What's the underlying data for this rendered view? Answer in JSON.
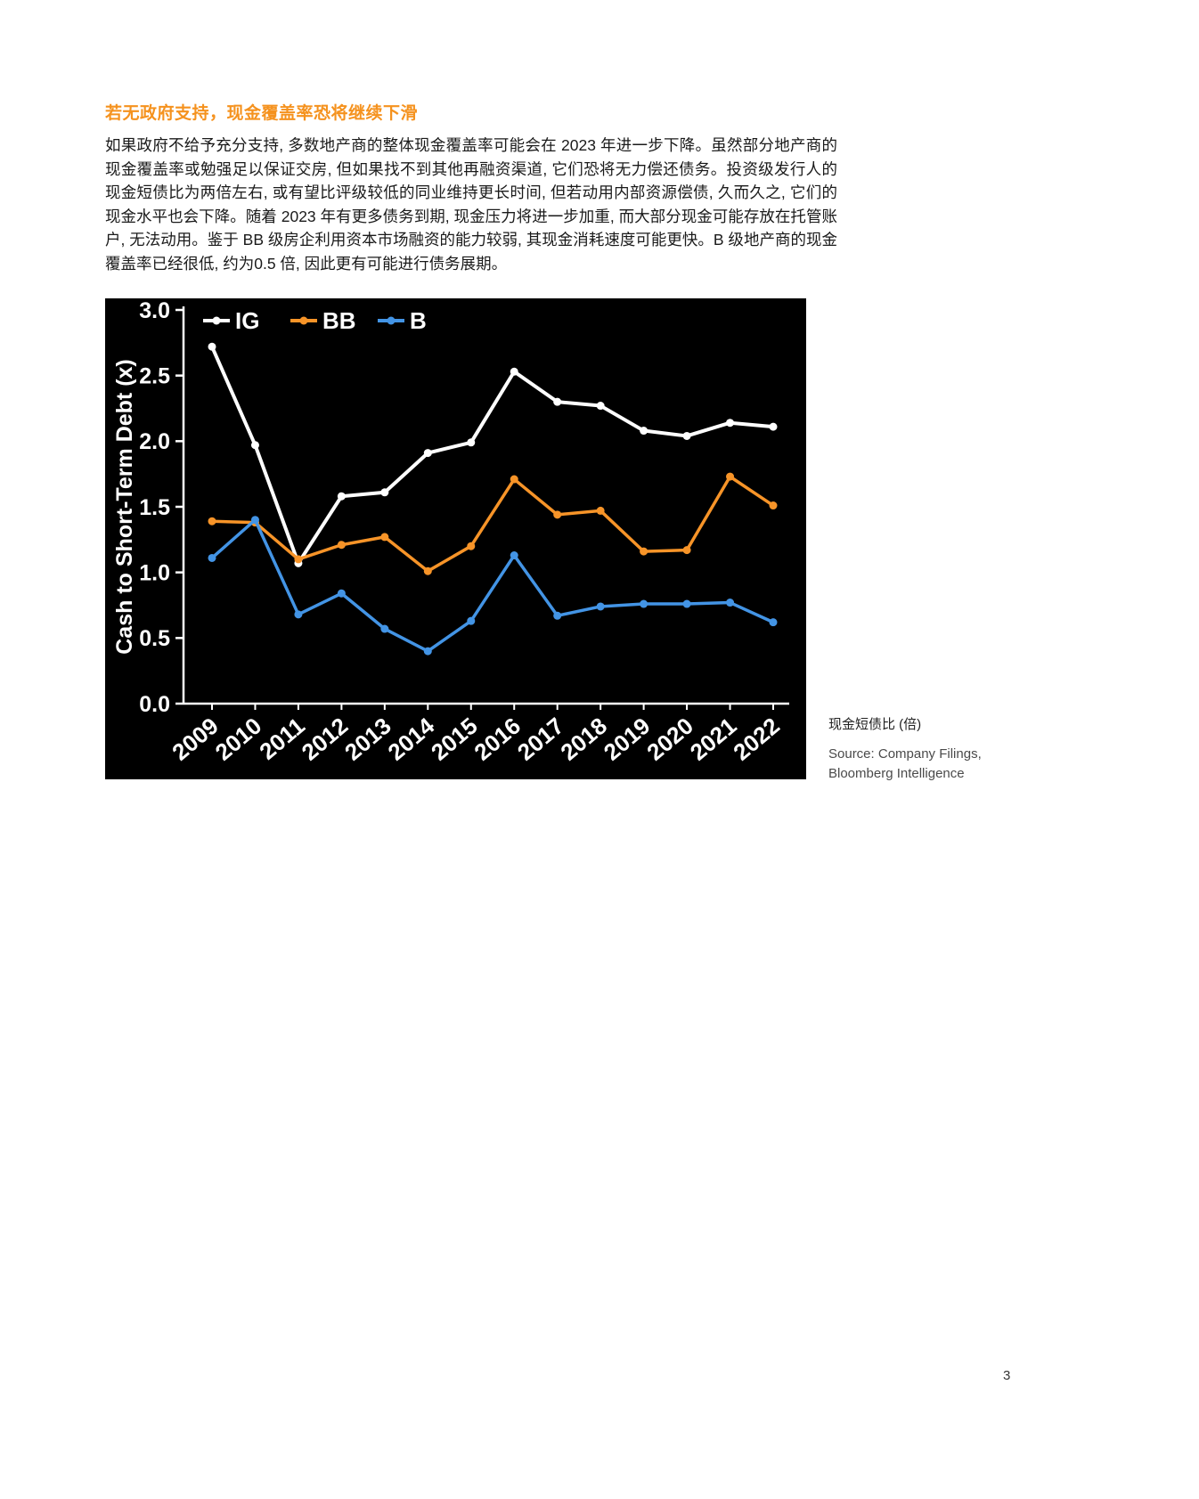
{
  "article": {
    "heading": "若无政府支持，现金覆盖率恐将继续下滑",
    "body": "如果政府不给予充分支持, 多数地产商的整体现金覆盖率可能会在 2023 年进一步下降。虽然部分地产商的现金覆盖率或勉强足以保证交房, 但如果找不到其他再融资渠道, 它们恐将无力偿还债务。投资级发行人的现金短债比为两倍左右, 或有望比评级较低的同业维持更长时间, 但若动用内部资源偿债, 久而久之, 它们的现金水平也会下降。随着 2023 年有更多债务到期, 现金压力将进一步加重, 而大部分现金可能存放在托管账户, 无法动用。鉴于 BB 级房企利用资本市场融资的能力较弱, 其现金消耗速度可能更快。B 级地产商的现金覆盖率已经很低, 约为0.5 倍, 因此更有可能进行债务展期。"
  },
  "chart_notes": {
    "caption": "现金短债比 (倍)",
    "source_line1": "Source: Company Filings,",
    "source_line2": "Bloomberg Intelligence"
  },
  "page": {
    "number": "3"
  },
  "chart_data": {
    "type": "line",
    "title": "",
    "xlabel": "",
    "ylabel": "Cash to Short-Term Debt (x)",
    "ylim": [
      0,
      3
    ],
    "yticks": [
      0.0,
      0.5,
      1.0,
      1.5,
      2.0,
      2.5,
      3.0
    ],
    "grid": false,
    "background": "#000000",
    "legend_position": "top-left",
    "categories": [
      "2009",
      "2010",
      "2011",
      "2012",
      "2013",
      "2014",
      "2015",
      "2016",
      "2017",
      "2018",
      "2019",
      "2020",
      "2021",
      "2022"
    ],
    "series": [
      {
        "name": "IG",
        "color": "#FFFFFF",
        "values": [
          2.72,
          1.97,
          1.07,
          1.58,
          1.61,
          1.91,
          1.99,
          2.53,
          2.3,
          2.27,
          2.08,
          2.04,
          2.14,
          2.11
        ]
      },
      {
        "name": "BB",
        "color": "#F79428",
        "values": [
          1.39,
          1.38,
          1.1,
          1.21,
          1.27,
          1.01,
          1.2,
          1.71,
          1.44,
          1.47,
          1.16,
          1.17,
          1.73,
          1.51
        ]
      },
      {
        "name": "B",
        "color": "#4394E5",
        "values": [
          1.11,
          1.4,
          0.68,
          0.84,
          0.57,
          0.4,
          0.63,
          1.13,
          0.67,
          0.74,
          0.76,
          0.76,
          0.77,
          0.62
        ]
      }
    ]
  }
}
